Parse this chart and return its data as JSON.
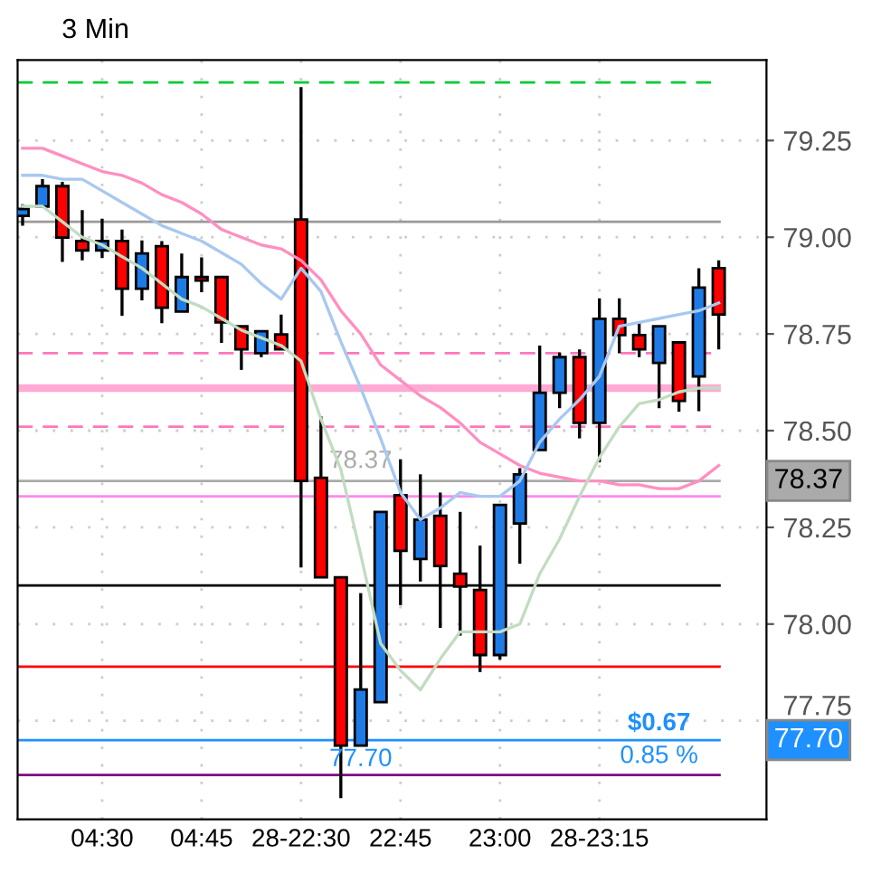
{
  "chart_data": {
    "type": "candlestick",
    "title": "3 Min",
    "categories": [
      null,
      null,
      null,
      null,
      "04:30",
      null,
      null,
      null,
      null,
      "04:45",
      null,
      null,
      null,
      null,
      "28-22:30",
      null,
      null,
      null,
      null,
      "22:45",
      null,
      null,
      null,
      null,
      "23:00",
      null,
      null,
      null,
      null,
      "28-23:15",
      null,
      null,
      null,
      null,
      null,
      null
    ],
    "ohlc": [
      [
        79.055,
        79.085,
        79.03,
        79.073
      ],
      [
        79.079,
        79.15,
        79.079,
        79.132
      ],
      [
        79.132,
        79.143,
        78.936,
        78.999
      ],
      [
        78.99,
        79.07,
        78.94,
        78.966
      ],
      [
        78.966,
        79.048,
        78.946,
        78.99
      ],
      [
        78.99,
        79.02,
        78.797,
        78.867
      ],
      [
        78.867,
        78.992,
        78.837,
        78.958
      ],
      [
        78.977,
        78.99,
        78.778,
        78.818
      ],
      [
        78.808,
        78.958,
        78.808,
        78.897
      ],
      [
        78.897,
        78.948,
        78.858,
        78.888
      ],
      [
        78.897,
        78.897,
        78.727,
        78.78
      ],
      [
        78.77,
        78.77,
        78.657,
        78.71
      ],
      [
        78.7,
        78.757,
        78.69,
        78.757
      ],
      [
        78.749,
        78.8,
        78.71,
        78.71
      ],
      [
        79.046,
        79.388,
        78.146,
        78.37
      ],
      [
        78.378,
        78.537,
        78.121,
        78.121
      ],
      [
        78.121,
        78.121,
        77.55,
        77.686
      ],
      [
        77.686,
        78.08,
        77.686,
        77.831
      ],
      [
        77.798,
        78.29,
        77.798,
        78.29
      ],
      [
        78.333,
        78.426,
        78.049,
        78.189
      ],
      [
        78.168,
        78.387,
        78.11,
        78.27
      ],
      [
        78.28,
        78.34,
        77.99,
        78.15
      ],
      [
        78.13,
        78.29,
        77.97,
        78.097
      ],
      [
        78.088,
        78.203,
        77.876,
        77.92
      ],
      [
        77.92,
        78.308,
        77.908,
        78.308
      ],
      [
        78.26,
        78.403,
        78.156,
        78.387
      ],
      [
        78.45,
        78.72,
        78.45,
        78.598
      ],
      [
        78.598,
        78.702,
        78.558,
        78.69
      ],
      [
        78.69,
        78.71,
        78.48,
        78.52
      ],
      [
        78.52,
        78.842,
        78.418,
        78.789
      ],
      [
        78.789,
        78.842,
        78.7,
        78.747
      ],
      [
        78.747,
        78.78,
        78.69,
        78.71
      ],
      [
        78.675,
        78.77,
        78.558,
        78.77
      ],
      [
        78.728,
        78.728,
        78.549,
        78.577
      ],
      [
        78.64,
        78.92,
        78.55,
        78.87
      ],
      [
        78.92,
        78.94,
        78.71,
        78.8
      ]
    ],
    "colors": [
      "#1e7be6",
      "#1e7be6",
      "#ff0000",
      "#ff0000",
      "#1e7be6",
      "#ff0000",
      "#1e7be6",
      "#ff0000",
      "#1e7be6",
      "#ff0000",
      "#ff0000",
      "#ff0000",
      "#1e7be6",
      "#ff0000",
      "#ff0000",
      "#ff0000",
      "#ff0000",
      "#1e7be6",
      "#1e7be6",
      "#ff0000",
      "#1e7be6",
      "#ff0000",
      "#ff0000",
      "#ff0000",
      "#1e7be6",
      "#1e7be6",
      "#1e7be6",
      "#1e7be6",
      "#ff0000",
      "#1e7be6",
      "#ff0000",
      "#ff0000",
      "#1e7be6",
      "#ff0000",
      "#1e7be6",
      "#ff0000"
    ],
    "series": [
      {
        "type": "line",
        "color": "#ff8fc0",
        "values": [
          79.23,
          79.23,
          79.21,
          79.19,
          79.17,
          79.16,
          79.14,
          79.11,
          79.09,
          79.06,
          79.02,
          79.0,
          78.98,
          78.97,
          78.94,
          78.89,
          78.81,
          78.75,
          78.67,
          78.63,
          78.59,
          78.56,
          78.52,
          78.47,
          78.44,
          78.41,
          78.39,
          78.38,
          78.37,
          78.37,
          78.36,
          78.36,
          78.35,
          78.35,
          78.37,
          78.41
        ]
      },
      {
        "type": "line",
        "color": "#a8c8f0",
        "values": [
          79.16,
          79.16,
          79.15,
          79.15,
          79.12,
          79.09,
          79.06,
          79.03,
          79.01,
          78.99,
          78.96,
          78.93,
          78.88,
          78.84,
          78.92,
          78.86,
          78.73,
          78.61,
          78.48,
          78.34,
          78.27,
          78.3,
          78.34,
          78.33,
          78.33,
          78.37,
          78.47,
          78.53,
          78.58,
          78.64,
          78.77,
          78.78,
          78.79,
          78.8,
          78.81,
          78.83
        ]
      },
      {
        "type": "line",
        "color": "#c2dcc2",
        "values": [
          79.08,
          79.08,
          79.04,
          79.0,
          78.98,
          78.95,
          78.92,
          78.88,
          78.84,
          78.82,
          78.79,
          78.76,
          78.74,
          78.72,
          78.68,
          78.53,
          78.4,
          78.18,
          77.95,
          77.88,
          77.83,
          77.91,
          77.98,
          77.98,
          77.98,
          78.0,
          78.13,
          78.22,
          78.33,
          78.43,
          78.51,
          78.57,
          78.58,
          78.6,
          78.61,
          78.61
        ]
      }
    ],
    "ylim": [
      77.495,
      79.458
    ],
    "yticks": [
      77.75,
      {
        "value": 78.0,
        "label": "78.00"
      },
      78.25,
      {
        "value": 78.5,
        "label": "78.50"
      },
      78.75,
      {
        "value": 79.0,
        "label": "79.00"
      },
      79.25
    ],
    "ref_lines": [
      {
        "axis": "y",
        "value": 79.4,
        "color": "#00cc33",
        "line_style": "dashed"
      },
      {
        "axis": "y",
        "value": 79.04,
        "color": "#999999"
      },
      {
        "axis": "y",
        "value": 78.7,
        "color": "#ff77bb",
        "line_style": "dashed"
      },
      {
        "axis": "y",
        "value": 78.61,
        "color": "#ffaad4"
      },
      {
        "axis": "y",
        "value": 78.51,
        "color": "#ff77bb",
        "line_style": "dashed"
      },
      {
        "axis": "y",
        "value": 78.37,
        "color": "#aaaaaa",
        "label": "78.37"
      },
      {
        "axis": "y",
        "value": 78.33,
        "color": "#ff88ee"
      },
      {
        "axis": "y",
        "value": 78.1,
        "color": "#000000"
      },
      {
        "axis": "y",
        "value": 77.89,
        "color": "#ff0000"
      },
      {
        "axis": "y",
        "value": 77.7,
        "color": "#1e90ff",
        "label": "77.70"
      },
      {
        "axis": "y",
        "value": 77.61,
        "color": "#800080"
      }
    ],
    "annotations": [
      "$0.67",
      "0.85 %"
    ],
    "grid": true
  }
}
